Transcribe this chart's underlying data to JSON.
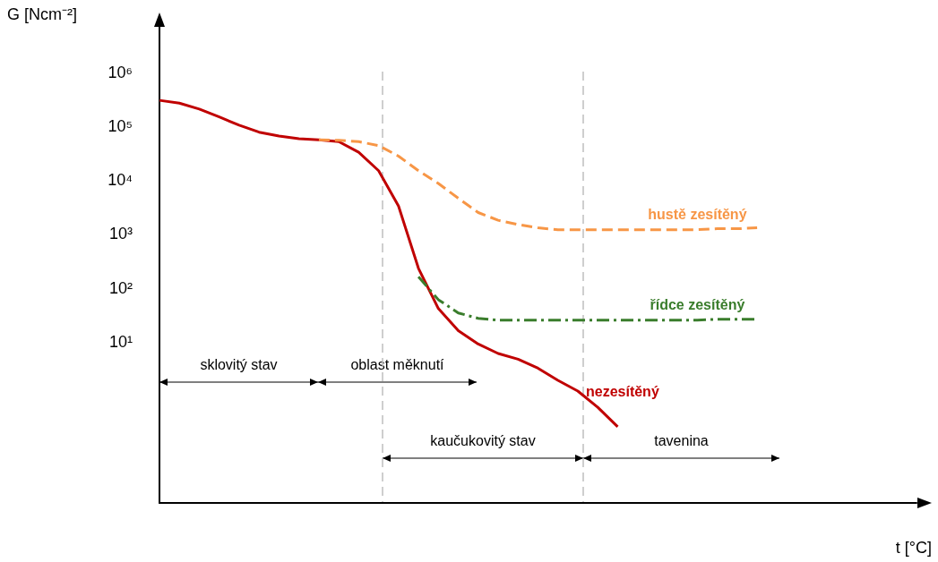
{
  "chart_data": {
    "type": "line",
    "xlabel": "t [°C]",
    "ylabel": "G [Ncm⁻²]",
    "categories": [
      null,
      null,
      null,
      null,
      null,
      null,
      null,
      null,
      null,
      null,
      null,
      null,
      null,
      null,
      null,
      null,
      null,
      null,
      null,
      null,
      null,
      null,
      null,
      null,
      null,
      null,
      null,
      null,
      null,
      null,
      null,
      null,
      null,
      null,
      null,
      null,
      null,
      null,
      null
    ],
    "series": [
      {
        "name": "nezesítěný",
        "color": "#c00000",
        "line_style": "solid",
        "values": [
          305000,
          270000,
          210000,
          150000,
          105000,
          78000,
          66000,
          59000,
          56000,
          52000,
          33000,
          15000,
          3300,
          230,
          41,
          16,
          9,
          6,
          4.7,
          3.2,
          1.9,
          1.2,
          0.6,
          0.26,
          null,
          null,
          null,
          null,
          null,
          null,
          null,
          null,
          null,
          null,
          null,
          null,
          null,
          null,
          null
        ]
      },
      {
        "name": "hustě zesítěný",
        "color": "#f79646",
        "line_style": "dashed",
        "values": [
          null,
          null,
          null,
          null,
          null,
          null,
          null,
          null,
          56000,
          55000,
          52000,
          44000,
          28000,
          15000,
          8700,
          4600,
          2500,
          1800,
          1500,
          1300,
          1200,
          1200,
          1200,
          1200,
          1200,
          1200,
          1200,
          1200,
          1250,
          1250,
          1300,
          null,
          null,
          null,
          null,
          null,
          null,
          null,
          null
        ]
      },
      {
        "name": "řídce zesítěný",
        "color": "#3a7d2c",
        "line_style": "dashdot",
        "values": [
          null,
          null,
          null,
          null,
          null,
          null,
          null,
          null,
          null,
          null,
          null,
          null,
          null,
          160,
          60,
          34,
          27,
          25,
          25,
          25,
          25,
          25,
          25,
          25,
          25,
          25,
          25,
          25,
          26,
          26,
          26,
          null,
          null,
          null,
          null,
          null,
          null,
          null,
          null
        ]
      }
    ],
    "ylim": [
      0.01,
      10000000
    ],
    "log": true,
    "yticks": [
      {
        "value": 10,
        "label": "10¹"
      },
      {
        "value": 100,
        "label": "10²"
      },
      {
        "value": 1000,
        "label": "10³"
      },
      {
        "value": 10000,
        "label": "10⁴"
      },
      {
        "value": 100000,
        "label": "10⁵"
      },
      {
        "value": 1000000,
        "label": "10⁶"
      }
    ],
    "annotations": [
      "sklovitý stav",
      "oblast měknutí",
      "kaučukovitý stav",
      "tavenina"
    ],
    "tick_labels": "y",
    "grid": false,
    "legend": false,
    "marker": "none"
  }
}
